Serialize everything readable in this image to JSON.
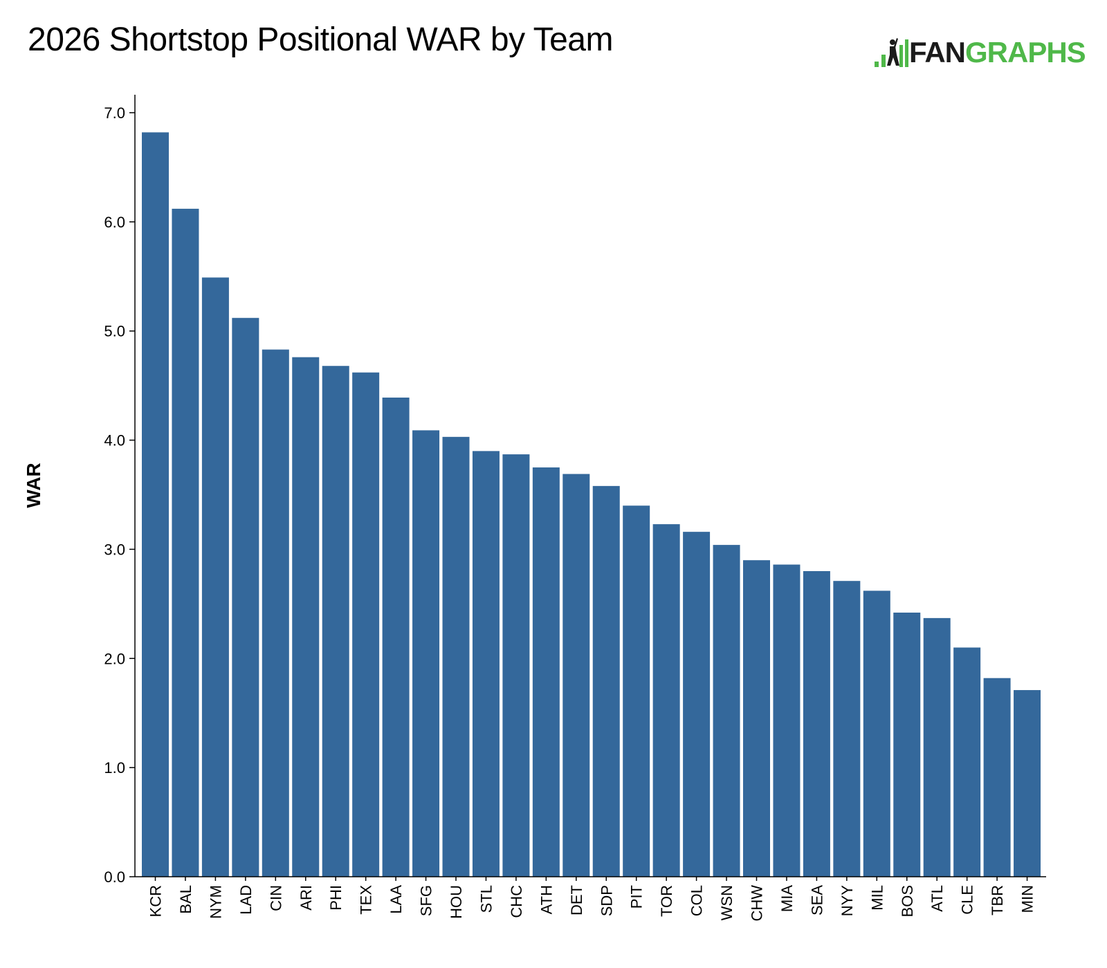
{
  "brand": {
    "logo_text_dark": "FAN",
    "logo_text_accent": "GRAPHS",
    "logo_icon": "batter-bars-icon",
    "accent_color": "#4fb849",
    "dark_color": "#1b1b1b"
  },
  "chart_data": {
    "type": "bar",
    "title": "2026 Shortstop Positional WAR by Team",
    "xlabel": "",
    "ylabel": "WAR",
    "ylim": [
      0,
      7
    ],
    "yticks": [
      "0.0",
      "1.0",
      "2.0",
      "3.0",
      "4.0",
      "5.0",
      "6.0",
      "7.0"
    ],
    "grid": false,
    "bar_color": "#34689b",
    "categories": [
      "KCR",
      "BAL",
      "NYM",
      "LAD",
      "CIN",
      "ARI",
      "PHI",
      "TEX",
      "LAA",
      "SFG",
      "HOU",
      "STL",
      "CHC",
      "ATH",
      "DET",
      "SDP",
      "PIT",
      "TOR",
      "COL",
      "WSN",
      "CHW",
      "MIA",
      "SEA",
      "NYY",
      "MIL",
      "BOS",
      "ATL",
      "CLE",
      "TBR",
      "MIN"
    ],
    "values": [
      6.82,
      6.12,
      5.49,
      5.12,
      4.83,
      4.76,
      4.68,
      4.62,
      4.39,
      4.09,
      4.03,
      3.9,
      3.87,
      3.75,
      3.69,
      3.58,
      3.4,
      3.23,
      3.16,
      3.04,
      2.9,
      2.86,
      2.8,
      2.71,
      2.62,
      2.42,
      2.37,
      2.1,
      1.82,
      1.71
    ]
  }
}
